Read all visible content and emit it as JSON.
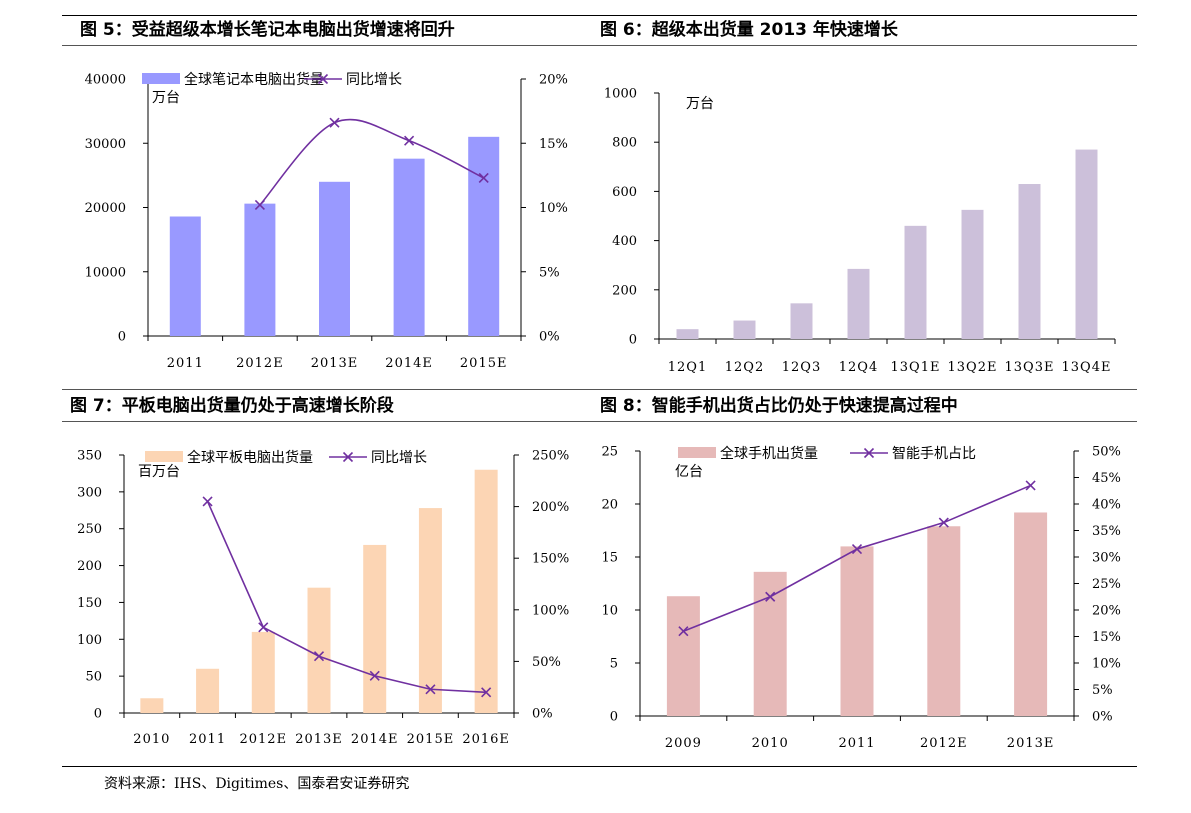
{
  "figures": [
    {
      "title": "图 5：受益超级本增长笔记本电脑出货增速将回升",
      "chart_data": {
        "type": "bar",
        "categories": [
          "2011",
          "2012E",
          "2013E",
          "2014E",
          "2015E"
        ],
        "series": [
          {
            "name": "全球笔记本电脑出货量",
            "kind": "bar",
            "axis": "left",
            "color": "#9999ff",
            "values": [
              18600,
              20600,
              24000,
              27600,
              31000
            ]
          },
          {
            "name": "同比增长",
            "kind": "line",
            "axis": "right",
            "color": "#7030a0",
            "smooth": true,
            "values": [
              null,
              10.2,
              16.6,
              15.2,
              12.3
            ]
          }
        ],
        "unit": "万台",
        "ylim": [
          0,
          40000
        ],
        "yticks": [
          "0",
          "10000",
          "20000",
          "30000",
          "40000"
        ],
        "y2lim": [
          0,
          20
        ],
        "y2ticks": [
          "0%",
          "5%",
          "10%",
          "15%",
          "20%"
        ],
        "legend": "top"
      }
    },
    {
      "title": "图 6：超级本出货量 2013 年快速增长",
      "chart_data": {
        "type": "bar",
        "categories": [
          "12Q1",
          "12Q2",
          "12Q3",
          "12Q4",
          "13Q1E",
          "13Q2E",
          "13Q3E",
          "13Q4E"
        ],
        "series": [
          {
            "kind": "bar",
            "axis": "left",
            "color": "#ccc0da",
            "values": [
              40,
              75,
              145,
              285,
              460,
              525,
              630,
              770
            ]
          }
        ],
        "unit": "万台",
        "ylim": [
          0,
          1000
        ],
        "yticks": [
          "0",
          "200",
          "400",
          "600",
          "800",
          "1000"
        ]
      }
    },
    {
      "title": "图 7：平板电脑出货量仍处于高速增长阶段",
      "chart_data": {
        "type": "bar",
        "categories": [
          "2010",
          "2011",
          "2012E",
          "2013E",
          "2014E",
          "2015E",
          "2016E"
        ],
        "series": [
          {
            "name": "全球平板电脑出货量",
            "kind": "bar",
            "axis": "left",
            "color": "#fcd5b4",
            "values": [
              20,
              60,
              110,
              170,
              228,
              278,
              330
            ]
          },
          {
            "name": "同比增长",
            "kind": "line",
            "axis": "right",
            "color": "#7030a0",
            "values": [
              null,
              205,
              83,
              55,
              36,
              23,
              20
            ]
          }
        ],
        "unit": "百万台",
        "ylim": [
          0,
          350
        ],
        "yticks": [
          "0",
          "50",
          "100",
          "150",
          "200",
          "250",
          "300",
          "350"
        ],
        "y2lim": [
          0,
          250
        ],
        "y2ticks": [
          "0%",
          "50%",
          "100%",
          "150%",
          "200%",
          "250%"
        ],
        "legend": "top"
      }
    },
    {
      "title": "图 8：智能手机出货占比仍处于快速提高过程中",
      "chart_data": {
        "type": "bar",
        "categories": [
          "2009",
          "2010",
          "2011",
          "2012E",
          "2013E"
        ],
        "series": [
          {
            "name": "全球手机出货量",
            "kind": "bar",
            "axis": "left",
            "color": "#e6b9b8",
            "values": [
              11.3,
              13.6,
              16.0,
              17.9,
              19.2
            ]
          },
          {
            "name": "智能手机占比",
            "kind": "line",
            "axis": "right",
            "color": "#7030a0",
            "values": [
              16,
              22.5,
              31.5,
              36.5,
              43.5
            ]
          }
        ],
        "unit": "亿台",
        "ylim": [
          0,
          25
        ],
        "yticks": [
          "0",
          "5",
          "10",
          "15",
          "20",
          "25"
        ],
        "y2lim": [
          0,
          50
        ],
        "y2ticks": [
          "0%",
          "5%",
          "10%",
          "15%",
          "20%",
          "25%",
          "30%",
          "35%",
          "40%",
          "45%",
          "50%"
        ],
        "legend": "top"
      }
    }
  ],
  "source": "资料来源：IHS、Digitimes、国泰君安证券研究"
}
